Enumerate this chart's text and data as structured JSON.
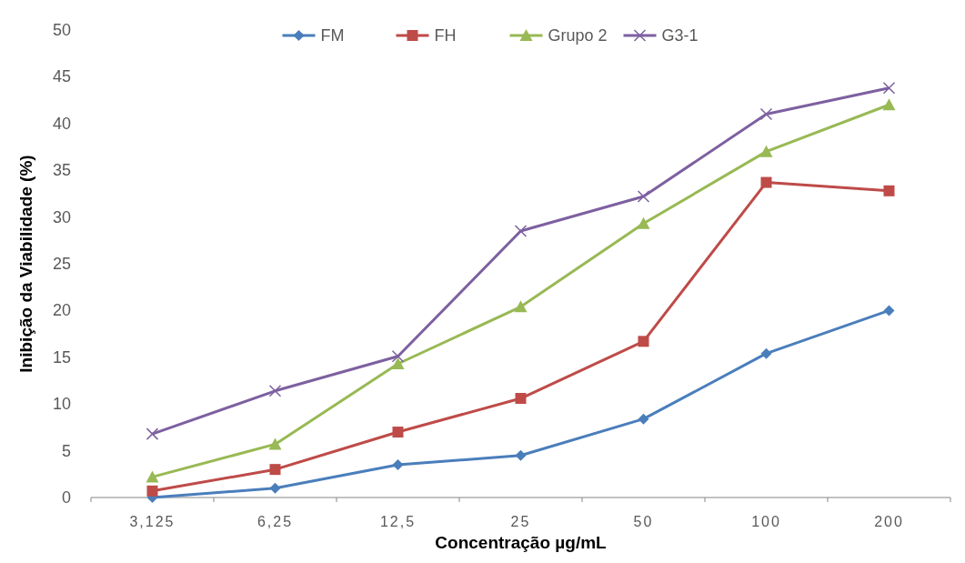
{
  "chart_data": {
    "type": "line",
    "xlabel": "Concentração µg/mL",
    "ylabel": "Inibição da Viabilidade (%)",
    "categories": [
      "3,125",
      "6,25",
      "12,5",
      "25",
      "50",
      "100",
      "200"
    ],
    "ylim": [
      0,
      50
    ],
    "yticks": [
      0,
      5,
      10,
      15,
      20,
      25,
      30,
      35,
      40,
      45,
      50
    ],
    "grid": false,
    "legend": "top",
    "line_style": "solid",
    "series": [
      {
        "name": "FM",
        "color": "#4a7ebb",
        "marker": "diamond",
        "values": [
          0,
          1,
          3.5,
          4.5,
          8.4,
          15.4,
          20
        ]
      },
      {
        "name": "FH",
        "color": "#be4b48",
        "marker": "square",
        "values": [
          0.7,
          3,
          7,
          10.6,
          16.7,
          33.7,
          32.8
        ]
      },
      {
        "name": "Grupo 2",
        "color": "#98b954",
        "marker": "triangle",
        "values": [
          2.2,
          5.7,
          14.3,
          20.4,
          29.3,
          37,
          42
        ]
      },
      {
        "name": "G3-1",
        "color": "#7d60a0",
        "marker": "cross",
        "values": [
          6.8,
          11.4,
          15.1,
          28.5,
          32.2,
          41,
          43.8
        ]
      }
    ]
  }
}
